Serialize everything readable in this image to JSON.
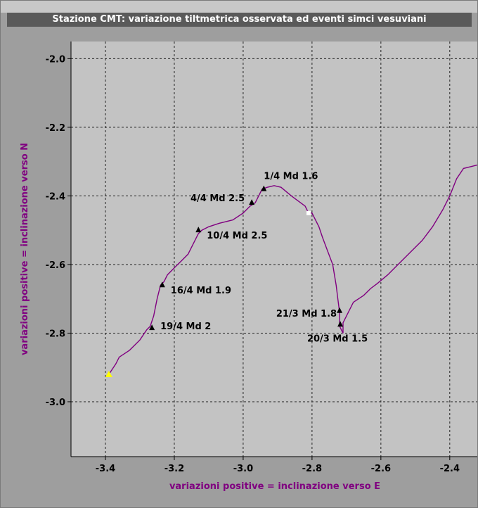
{
  "window": {
    "title": "Stazione CMT: variazione tiltmetrica osservata ed eventi simci vesuviani"
  },
  "colors": {
    "plot_bg": "#c3c3c3",
    "outer_bg": "#9e9e9e",
    "line": "#800080",
    "marker": "#000000",
    "start_marker": "#ffff00",
    "end_marker": "#ffffff",
    "axis_label": "#800080"
  },
  "chart_data": {
    "type": "line",
    "title": "Stazione CMT: variazione tiltmetrica osservata ed eventi simci vesuviani",
    "xlabel": "variazioni positive = inclinazione verso E",
    "ylabel": "variazioni positive = inclinazione verso N",
    "xlim": [
      -3.5,
      -2.32
    ],
    "ylim": [
      -3.16,
      -1.95
    ],
    "x_ticks": [
      -3.4,
      -3.2,
      -3.0,
      -2.8,
      -2.6,
      -2.4
    ],
    "x_tick_labels": [
      "-3.4",
      "-3.2",
      "-3.0",
      "-2.8",
      "-2.6",
      "-2.4"
    ],
    "y_ticks": [
      -2.0,
      -2.2,
      -2.4,
      -2.6,
      -2.8,
      -3.0
    ],
    "y_tick_labels": [
      "-2.0",
      "-2.2",
      "-2.4",
      "-2.6",
      "-2.8",
      "-3.0"
    ],
    "grid": true,
    "series": [
      {
        "x": [
          -2.32,
          -2.36,
          -2.38,
          -2.4,
          -2.42,
          -2.45,
          -2.48,
          -2.51,
          -2.55,
          -2.58,
          -2.61,
          -2.63,
          -2.65,
          -2.68,
          -2.69,
          -2.71,
          -2.71,
          -2.72,
          -2.72,
          -2.725,
          -2.73,
          -2.74,
          -2.755,
          -2.77,
          -2.78,
          -2.79,
          -2.8,
          -2.81,
          -2.82,
          -2.86,
          -2.89,
          -2.91,
          -2.93,
          -2.945,
          -2.955,
          -2.965,
          -2.98,
          -3.0,
          -3.03,
          -3.07,
          -3.1,
          -3.12,
          -3.13,
          -3.14,
          -3.16,
          -3.18,
          -3.2,
          -3.22,
          -3.23,
          -3.24,
          -3.25,
          -3.26,
          -3.27,
          -3.28,
          -3.3,
          -3.33,
          -3.36,
          -3.37,
          -3.39
        ],
        "y": [
          -2.31,
          -2.32,
          -2.35,
          -2.4,
          -2.44,
          -2.49,
          -2.53,
          -2.56,
          -2.6,
          -2.63,
          -2.655,
          -2.67,
          -2.69,
          -2.71,
          -2.73,
          -2.77,
          -2.8,
          -2.78,
          -2.74,
          -2.7,
          -2.66,
          -2.6,
          -2.56,
          -2.52,
          -2.49,
          -2.47,
          -2.45,
          -2.45,
          -2.43,
          -2.4,
          -2.375,
          -2.37,
          -2.375,
          -2.38,
          -2.4,
          -2.42,
          -2.43,
          -2.45,
          -2.47,
          -2.48,
          -2.49,
          -2.5,
          -2.51,
          -2.53,
          -2.57,
          -2.59,
          -2.61,
          -2.63,
          -2.65,
          -2.66,
          -2.7,
          -2.75,
          -2.78,
          -2.79,
          -2.82,
          -2.85,
          -2.87,
          -2.89,
          -2.92
        ]
      }
    ],
    "start_point": {
      "x": -3.39,
      "y": -2.92
    },
    "end_point": {
      "x": -2.81,
      "y": -2.45
    },
    "events": [
      {
        "x": -2.94,
        "y": -2.38,
        "label": "1/4 Md 1.6"
      },
      {
        "x": -2.975,
        "y": -2.42,
        "label": "4/4 Md 2.5"
      },
      {
        "x": -3.13,
        "y": -2.5,
        "label": "10/4 Md 2.5"
      },
      {
        "x": -3.235,
        "y": -2.66,
        "label": "16/4 Md 1.9"
      },
      {
        "x": -3.265,
        "y": -2.785,
        "label": "19/4 Md 2"
      },
      {
        "x": -2.72,
        "y": -2.735,
        "label": "21/3 Md 1.8"
      },
      {
        "x": -2.718,
        "y": -2.775,
        "label": "20/3 Md 1.5"
      }
    ]
  }
}
